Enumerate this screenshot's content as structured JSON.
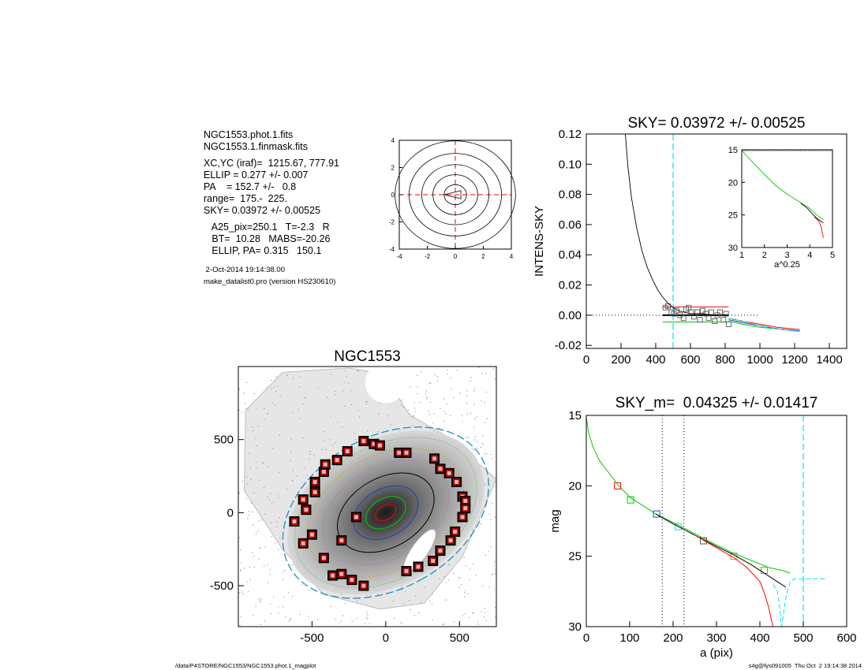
{
  "info": {
    "lines": [
      "NGC1553.phot.1.fits",
      "NGC1553.1.finmask.fits",
      "",
      "XC,YC (iraf)=  1215.67, 777.91",
      "ELLIP = 0.277 +/- 0.007",
      "PA    = 152.7 +/-   0.8",
      "range=  175.-  225.",
      "SKY= 0.03972 +/- 0.00525",
      "",
      "   A25_pix=250.1   T=-2.3   R",
      "   BT=  10.28   MABS=-20.26",
      "   ELLIP, PA= 0.315   150.1"
    ],
    "timestamp": " 2-Oct-2014 19:14:38.00",
    "program": "make_datalist0.pro (version HS230610)"
  },
  "footer": {
    "left": "/data/P4STORE/NGC1553/NGC1553.phot.1_magplot",
    "right": "s4g@fys091005  Thu Oct  2 19:14:38 2014"
  },
  "colors": {
    "red": "#ff0000",
    "green": "#00cc00",
    "cyan": "#00e5ee",
    "blue": "#1f3fbf",
    "grey": "#555555"
  },
  "chart_data": [
    {
      "id": "center",
      "type": "contour",
      "title": "",
      "xlim": [
        -4,
        4
      ],
      "ylim": [
        -4,
        4
      ],
      "xticks": [
        "-4",
        "-2",
        "0",
        "2",
        "4"
      ],
      "yticks": [
        "-4",
        "-2",
        "0",
        "2",
        "4"
      ],
      "contour_radii": [
        0.8,
        1.6,
        2.4,
        3.3,
        4.3
      ],
      "center": [
        0,
        0
      ]
    },
    {
      "id": "image",
      "type": "image",
      "title": "NGC1553",
      "xlim": [
        -1000,
        750
      ],
      "ylim": [
        -780,
        1000
      ],
      "xticks": [
        "-500",
        "0",
        "500"
      ],
      "yticks": [
        "-500",
        "0",
        "500"
      ],
      "ellipse": {
        "center": [
          0,
          0
        ],
        "semi_major": 500,
        "ellip": 0.315,
        "pa_deg": 150.1
      },
      "mask_boxes": [
        [
          -620,
          -60
        ],
        [
          -560,
          -210
        ],
        [
          -500,
          -150
        ],
        [
          -540,
          20
        ],
        [
          -560,
          90
        ],
        [
          -480,
          210
        ],
        [
          -480,
          140
        ],
        [
          -420,
          280
        ],
        [
          -410,
          330
        ],
        [
          -330,
          360
        ],
        [
          -260,
          420
        ],
        [
          -150,
          490
        ],
        [
          -80,
          470
        ],
        [
          -40,
          460
        ],
        [
          90,
          410
        ],
        [
          140,
          410
        ],
        [
          330,
          370
        ],
        [
          370,
          300
        ],
        [
          430,
          270
        ],
        [
          480,
          210
        ],
        [
          520,
          110
        ],
        [
          540,
          80
        ],
        [
          540,
          30
        ],
        [
          520,
          -30
        ],
        [
          470,
          -130
        ],
        [
          440,
          -190
        ],
        [
          370,
          -260
        ],
        [
          320,
          -330
        ],
        [
          220,
          -370
        ],
        [
          140,
          -400
        ],
        [
          -150,
          -500
        ],
        [
          -230,
          -460
        ],
        [
          -300,
          -420
        ],
        [
          -360,
          -430
        ],
        [
          -420,
          -310
        ],
        [
          -300,
          -190
        ],
        [
          -200,
          -30
        ]
      ]
    },
    {
      "id": "sky",
      "type": "line",
      "title": "SKY= 0.03972 +/- 0.00525",
      "xlabel": "",
      "ylabel": "INTENS-SKY",
      "xlim": [
        0,
        1500
      ],
      "ylim": [
        -0.022,
        0.12
      ],
      "xticks": [
        0,
        200,
        400,
        600,
        800,
        1000,
        1200,
        1400
      ],
      "yticks": [
        0.12,
        0.1,
        0.08,
        0.06,
        0.04,
        0.02,
        0.0,
        -0.02
      ],
      "ytick_labels": [
        "0.12",
        "0.10",
        "0.08",
        "0.06",
        "0.04",
        "0.02",
        "0.00",
        "-0.02"
      ],
      "vline": 500,
      "hline": 0,
      "profile": {
        "x": [
          225,
          240,
          260,
          290,
          320,
          350,
          380,
          410,
          440,
          470,
          500,
          530,
          560,
          600,
          650,
          700,
          750,
          800,
          820
        ],
        "y": [
          0.12,
          0.098,
          0.078,
          0.058,
          0.043,
          0.032,
          0.024,
          0.017,
          0.012,
          0.008,
          0.005,
          0.003,
          0.002,
          0.001,
          0.001,
          0.0005,
          0.0,
          0.0,
          0.0
        ]
      },
      "sky_points": {
        "x": [
          455,
          470,
          490,
          505,
          520,
          540,
          560,
          575,
          590,
          605,
          620,
          640,
          655,
          670,
          690,
          705,
          720,
          740,
          755,
          770,
          790,
          805,
          820
        ],
        "y": [
          0.005,
          0.006,
          0.002,
          0.001,
          0.003,
          0.0,
          -0.002,
          0.004,
          0.005,
          0.002,
          -0.001,
          0.002,
          -0.003,
          0.003,
          0.001,
          -0.002,
          0.002,
          -0.004,
          0.0,
          0.002,
          -0.003,
          0.001,
          -0.006
        ]
      },
      "inset": {
        "xlabel": "a^0.25",
        "xlim": [
          1,
          5
        ],
        "ylim": [
          15,
          30
        ],
        "xticks": [
          1,
          2,
          3,
          4,
          5
        ],
        "yticks": [
          15,
          20,
          25,
          30
        ],
        "series": [
          {
            "color": "green",
            "x": [
              1.0,
              1.5,
              2.0,
              2.5,
              3.0,
              3.5,
              4.0,
              4.3,
              4.6
            ],
            "y": [
              15.1,
              17.0,
              18.8,
              20.5,
              21.8,
              22.9,
              24.0,
              25.0,
              25.7
            ]
          },
          {
            "color": "black",
            "x": [
              3.6,
              3.9,
              4.1,
              4.3,
              4.5,
              4.6
            ],
            "y": [
              23.2,
              24.0,
              24.8,
              25.5,
              26.0,
              26.2
            ]
          },
          {
            "color": "red",
            "x": [
              4.2,
              4.4,
              4.5,
              4.55,
              4.6
            ],
            "y": [
              25.3,
              26.0,
              26.8,
              27.8,
              28.5
            ]
          }
        ]
      }
    },
    {
      "id": "mag",
      "type": "line",
      "title": "SKY_m=  0.04325 +/- 0.01417",
      "xlabel": "a (pix)",
      "ylabel": "mag",
      "xlim": [
        0,
        600
      ],
      "ylim": [
        15,
        30
      ],
      "xticks": [
        0,
        100,
        200,
        300,
        400,
        500,
        600
      ],
      "yticks": [
        15,
        20,
        25,
        30
      ],
      "vlines_dotted": [
        175,
        225
      ],
      "vline_cyan": 500,
      "series": [
        {
          "color": "green",
          "x": [
            0,
            5,
            15,
            30,
            50,
            75,
            100,
            130,
            160,
            200,
            250,
            300,
            340,
            380,
            420,
            450,
            470
          ],
          "y": [
            15.1,
            16.2,
            17.2,
            18.2,
            19.0,
            20.0,
            20.8,
            21.4,
            22.0,
            22.6,
            23.4,
            24.2,
            24.8,
            25.3,
            25.8,
            26.0,
            26.2
          ]
        },
        {
          "color": "black",
          "x": [
            160,
            200,
            250,
            300,
            340,
            380,
            410,
            430,
            450,
            460
          ],
          "y": [
            22.0,
            22.7,
            23.5,
            24.3,
            24.9,
            25.6,
            26.2,
            26.6,
            27.0,
            27.2
          ]
        },
        {
          "color": "red",
          "x": [
            250,
            300,
            340,
            370,
            400,
            410,
            420,
            430
          ],
          "y": [
            23.5,
            24.4,
            25.1,
            25.8,
            26.8,
            27.6,
            28.6,
            30.0
          ]
        },
        {
          "color": "cyan",
          "x": [
            430,
            440,
            445,
            450,
            460,
            470,
            480,
            500,
            550
          ],
          "y": [
            27.0,
            27.4,
            28.5,
            30.0,
            27.9,
            26.8,
            26.6,
            26.6,
            26.6
          ]
        }
      ],
      "markers": [
        {
          "color": "red",
          "x": 72,
          "y": 20.0
        },
        {
          "color": "green",
          "x": 102,
          "y": 21.0
        },
        {
          "color": "blue",
          "x": 162,
          "y": 22.0
        },
        {
          "color": "cyan",
          "x": 212,
          "y": 22.9
        },
        {
          "color": "grey",
          "x": 270,
          "y": 23.9
        },
        {
          "color": "orange",
          "x": 340,
          "y": 25.0
        },
        {
          "color": "olive",
          "x": 410,
          "y": 26.0
        }
      ]
    }
  ]
}
